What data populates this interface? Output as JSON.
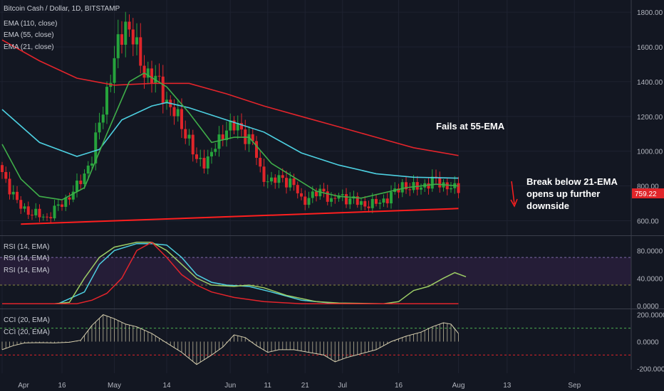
{
  "header": {
    "symbol": "Bitcoin Cash / Dollar, 1D, BITSTAMP",
    "ema110": "EMA (110, close)",
    "ema55": "EMA (55, close)",
    "ema21": "EMA (21, close)"
  },
  "rsi_labels": [
    "RSI (14, EMA)",
    "RSI (14, EMA)",
    "RSI (14, EMA)"
  ],
  "cci_labels": [
    "CCI (20, EMA)",
    "CCI (20, EMA)"
  ],
  "annotations": {
    "fails": "Fails at 55-EMA",
    "break": [
      "Break below 21-EMA",
      "opens up further",
      "downside"
    ]
  },
  "price_badge": "759.22",
  "colors": {
    "background": "#131722",
    "up": "#26a33c",
    "down": "#e0252a",
    "ema110": "#e3242b",
    "ema55": "#4dd0e1",
    "ema21": "#3fae49",
    "trendline": "#ff1f1f",
    "rsi_band": "#2a1f3d"
  },
  "chart_data": [
    {
      "type": "candlestick",
      "title": "Bitcoin Cash / Dollar, 1D, BITSTAMP",
      "y_ticks": [
        "1800.00",
        "1600.00",
        "1400.00",
        "1200.00",
        "1000.00",
        "800.00",
        "600.00"
      ],
      "y_tick_values": [
        1800,
        1600,
        1400,
        1200,
        1000,
        800,
        600
      ],
      "ylim": [
        520,
        1870
      ],
      "x_ticks": [
        "Apr",
        "16",
        "May",
        "14",
        "Jun",
        "11",
        "21",
        "Jul",
        "16",
        "Aug",
        "13",
        "Sep"
      ],
      "x_tick_days": [
        0,
        16,
        30,
        44,
        61,
        71,
        81,
        91,
        106,
        122,
        135,
        153
      ],
      "last_price": 759.22,
      "candle_close_keypoints": [
        [
          0,
          880
        ],
        [
          4,
          700
        ],
        [
          8,
          640
        ],
        [
          12,
          620
        ],
        [
          16,
          700
        ],
        [
          20,
          790
        ],
        [
          24,
          960
        ],
        [
          28,
          1350
        ],
        [
          31,
          1600
        ],
        [
          33,
          1750
        ],
        [
          35,
          1650
        ],
        [
          37,
          1500
        ],
        [
          39,
          1450
        ],
        [
          42,
          1380
        ],
        [
          45,
          1250
        ],
        [
          48,
          1150
        ],
        [
          50,
          1070
        ],
        [
          52,
          930
        ],
        [
          55,
          960
        ],
        [
          58,
          1050
        ],
        [
          60,
          1150
        ],
        [
          63,
          1130
        ],
        [
          65,
          1100
        ],
        [
          67,
          1050
        ],
        [
          69,
          880
        ],
        [
          72,
          820
        ],
        [
          75,
          850
        ],
        [
          78,
          800
        ],
        [
          80,
          720
        ],
        [
          83,
          740
        ],
        [
          86,
          780
        ],
        [
          88,
          700
        ],
        [
          90,
          750
        ],
        [
          93,
          720
        ],
        [
          96,
          700
        ],
        [
          99,
          690
        ],
        [
          102,
          720
        ],
        [
          105,
          760
        ],
        [
          107,
          810
        ],
        [
          110,
          780
        ],
        [
          113,
          810
        ],
        [
          116,
          830
        ],
        [
          120,
          790
        ],
        [
          122,
          759.22
        ]
      ],
      "series": [
        {
          "name": "EMA (110, close)",
          "points": [
            [
              0,
              1640
            ],
            [
              10,
              1520
            ],
            [
              20,
              1420
            ],
            [
              30,
              1380
            ],
            [
              40,
              1390
            ],
            [
              50,
              1390
            ],
            [
              60,
              1330
            ],
            [
              70,
              1260
            ],
            [
              80,
              1200
            ],
            [
              90,
              1140
            ],
            [
              100,
              1080
            ],
            [
              110,
              1020
            ],
            [
              122,
              975
            ]
          ]
        },
        {
          "name": "EMA (55, close)",
          "points": [
            [
              0,
              1240
            ],
            [
              10,
              1050
            ],
            [
              20,
              970
            ],
            [
              26,
              1010
            ],
            [
              32,
              1180
            ],
            [
              40,
              1260
            ],
            [
              44,
              1280
            ],
            [
              50,
              1250
            ],
            [
              60,
              1180
            ],
            [
              70,
              1110
            ],
            [
              80,
              990
            ],
            [
              90,
              920
            ],
            [
              100,
              870
            ],
            [
              110,
              850
            ],
            [
              122,
              845
            ]
          ]
        },
        {
          "name": "EMA (21, close)",
          "points": [
            [
              0,
              1040
            ],
            [
              5,
              840
            ],
            [
              10,
              740
            ],
            [
              16,
              720
            ],
            [
              22,
              790
            ],
            [
              28,
              1100
            ],
            [
              34,
              1400
            ],
            [
              38,
              1450
            ],
            [
              44,
              1370
            ],
            [
              50,
              1220
            ],
            [
              56,
              1050
            ],
            [
              62,
              1080
            ],
            [
              66,
              1080
            ],
            [
              72,
              930
            ],
            [
              78,
              850
            ],
            [
              84,
              770
            ],
            [
              90,
              740
            ],
            [
              96,
              730
            ],
            [
              102,
              760
            ],
            [
              108,
              790
            ],
            [
              116,
              810
            ],
            [
              122,
              800
            ]
          ]
        },
        {
          "name": "trendline",
          "points": [
            [
              5,
              580
            ],
            [
              122,
              670
            ]
          ]
        }
      ]
    },
    {
      "type": "line",
      "title": "RSI (14, EMA)",
      "y_ticks": [
        "80.0000",
        "40.0000",
        "0.0000"
      ],
      "y_tick_values": [
        80,
        40,
        0
      ],
      "ylim": [
        -3,
        100
      ],
      "bands": [
        70,
        30
      ],
      "series": [
        {
          "name": "RSI (14, EMA)",
          "points": [
            [
              0,
              3
            ],
            [
              15,
              3
            ],
            [
              22,
              20
            ],
            [
              26,
              60
            ],
            [
              30,
              80
            ],
            [
              36,
              90
            ],
            [
              40,
              90
            ],
            [
              44,
              88
            ],
            [
              48,
              70
            ],
            [
              52,
              45
            ],
            [
              56,
              34
            ],
            [
              60,
              30
            ],
            [
              66,
              28
            ],
            [
              72,
              20
            ],
            [
              80,
              8
            ],
            [
              90,
              3
            ],
            [
              110,
              3
            ],
            [
              122,
              3
            ]
          ]
        },
        {
          "name": "RSI (14, EMA)",
          "points": [
            [
              0,
              3
            ],
            [
              14,
              3
            ],
            [
              18,
              5
            ],
            [
              22,
              40
            ],
            [
              26,
              70
            ],
            [
              30,
              85
            ],
            [
              36,
              92
            ],
            [
              40,
              92
            ],
            [
              44,
              80
            ],
            [
              48,
              60
            ],
            [
              52,
              40
            ],
            [
              56,
              30
            ],
            [
              62,
              28
            ],
            [
              66,
              30
            ],
            [
              70,
              26
            ],
            [
              76,
              15
            ],
            [
              84,
              6
            ],
            [
              90,
              4
            ],
            [
              102,
              3
            ],
            [
              106,
              6
            ],
            [
              110,
              22
            ],
            [
              114,
              28
            ],
            [
              118,
              40
            ],
            [
              121,
              48
            ],
            [
              124,
              42
            ]
          ]
        },
        {
          "name": "RSI (14, EMA)",
          "points": [
            [
              0,
              3
            ],
            [
              20,
              3
            ],
            [
              24,
              8
            ],
            [
              28,
              18
            ],
            [
              32,
              40
            ],
            [
              36,
              80
            ],
            [
              40,
              92
            ],
            [
              44,
              70
            ],
            [
              48,
              45
            ],
            [
              52,
              30
            ],
            [
              56,
              20
            ],
            [
              62,
              12
            ],
            [
              70,
              6
            ],
            [
              80,
              3
            ],
            [
              100,
              3
            ],
            [
              122,
              3
            ]
          ]
        }
      ]
    },
    {
      "type": "bar",
      "title": "CCI (20, EMA)",
      "y_ticks": [
        "200.0000",
        "0.0000",
        "-200.0000"
      ],
      "y_tick_values": [
        200,
        0,
        -200
      ],
      "ylim": [
        -235,
        235
      ],
      "bands": [
        100,
        -100
      ],
      "points": [
        [
          0,
          -60
        ],
        [
          3,
          -30
        ],
        [
          6,
          -10
        ],
        [
          10,
          -8
        ],
        [
          14,
          -10
        ],
        [
          18,
          -5
        ],
        [
          21,
          10
        ],
        [
          24,
          120
        ],
        [
          27,
          200
        ],
        [
          30,
          170
        ],
        [
          33,
          130
        ],
        [
          36,
          110
        ],
        [
          40,
          60
        ],
        [
          44,
          -10
        ],
        [
          48,
          -80
        ],
        [
          52,
          -170
        ],
        [
          56,
          -100
        ],
        [
          59,
          -40
        ],
        [
          62,
          50
        ],
        [
          65,
          30
        ],
        [
          68,
          -30
        ],
        [
          71,
          -80
        ],
        [
          74,
          -60
        ],
        [
          78,
          -60
        ],
        [
          82,
          -80
        ],
        [
          86,
          -100
        ],
        [
          89,
          -150
        ],
        [
          92,
          -120
        ],
        [
          96,
          -90
        ],
        [
          100,
          -60
        ],
        [
          104,
          0
        ],
        [
          108,
          40
        ],
        [
          112,
          70
        ],
        [
          115,
          110
        ],
        [
          118,
          140
        ],
        [
          120,
          130
        ],
        [
          122,
          60
        ]
      ]
    }
  ]
}
